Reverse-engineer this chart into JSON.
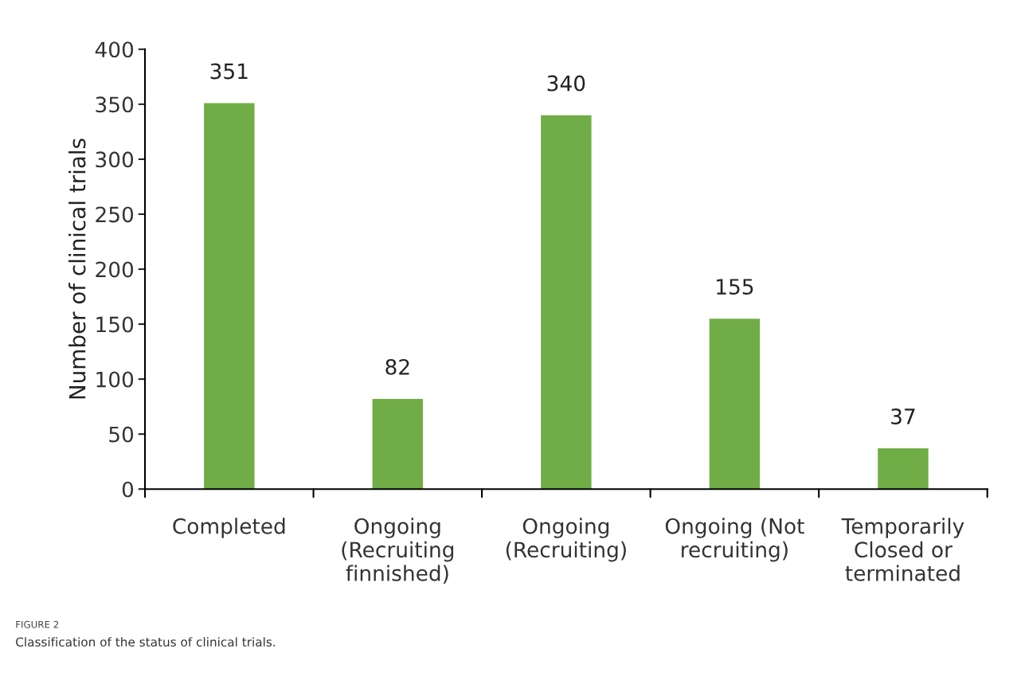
{
  "chart_data": {
    "type": "bar",
    "categories": [
      "Completed",
      "Ongoing\n(Recruiting\nfinnished)",
      "Ongoing\n(Recruiting)",
      "Ongoing (Not\nrecruiting)",
      "Temporarily\nClosed or\nterminated"
    ],
    "values": [
      351,
      82,
      340,
      155,
      37
    ],
    "color": "#70ad47",
    "ylabel": "Number of clinical trials",
    "ylim": [
      0,
      400
    ],
    "yticks": [
      0,
      50,
      100,
      150,
      200,
      250,
      300,
      350,
      400
    ],
    "data_labels": true,
    "grid": false,
    "annotations": [
      "FIGURE 2",
      "Classification of the status of clinical trials."
    ]
  }
}
